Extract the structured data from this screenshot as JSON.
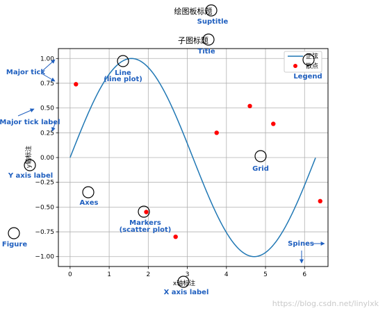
{
  "chart_data": {
    "type": "line",
    "suptitle": "绘图板标题",
    "title": "子图标题",
    "xlabel": "x轴标注",
    "ylabel": "y轴标注",
    "xlim": [
      -0.3,
      6.6
    ],
    "ylim": [
      -1.1,
      1.1
    ],
    "xticks": [
      0,
      1,
      2,
      3,
      4,
      5,
      6
    ],
    "yticks": [
      -1.0,
      -0.75,
      -0.5,
      -0.25,
      0.0,
      0.25,
      0.5,
      0.75,
      1.0
    ],
    "xtick_labels": [
      "0",
      "1",
      "2",
      "3",
      "4",
      "5",
      "6"
    ],
    "ytick_labels": [
      "−1.00",
      "−0.75",
      "−0.50",
      "−0.25",
      "0.00",
      "0.25",
      "0.50",
      "0.75",
      "1.00"
    ],
    "grid": true,
    "legend_position": "top-right",
    "series": [
      {
        "name": "正弦",
        "kind": "line",
        "function": "sin",
        "x_range": [
          0,
          6.28
        ],
        "color": "#1f77b4"
      },
      {
        "name": "散点",
        "kind": "scatter",
        "color": "#ff0000",
        "x": [
          0.15,
          1.95,
          2.7,
          3.75,
          4.6,
          5.2,
          6.4
        ],
        "y": [
          0.74,
          -0.55,
          -0.8,
          0.25,
          0.52,
          0.34,
          -0.44
        ]
      }
    ]
  },
  "annotations": [
    {
      "key": "suptitle",
      "label": "Suptitle"
    },
    {
      "key": "title",
      "label": "Title"
    },
    {
      "key": "legend",
      "label": "Legend"
    },
    {
      "key": "major_tick",
      "label": "Major tick"
    },
    {
      "key": "major_tick_label",
      "label": "Major tick label"
    },
    {
      "key": "line",
      "label": "Line",
      "sublabel": "(line plot)"
    },
    {
      "key": "grid",
      "label": "Grid"
    },
    {
      "key": "y_axis_label",
      "label": "Y axis label"
    },
    {
      "key": "axes",
      "label": "Axes"
    },
    {
      "key": "markers",
      "label": "Markers",
      "sublabel": "(scatter plot)"
    },
    {
      "key": "figure",
      "label": "Figure"
    },
    {
      "key": "spines",
      "label": "Spines"
    },
    {
      "key": "x_axis_label",
      "label": "X axis label"
    }
  ],
  "colors": {
    "annotation": "#1f5fbf",
    "line": "#1f77b4",
    "marker": "#ff0000",
    "grid": "#b0b0b0"
  },
  "watermark": "https://blog.csdn.net/linylxk"
}
